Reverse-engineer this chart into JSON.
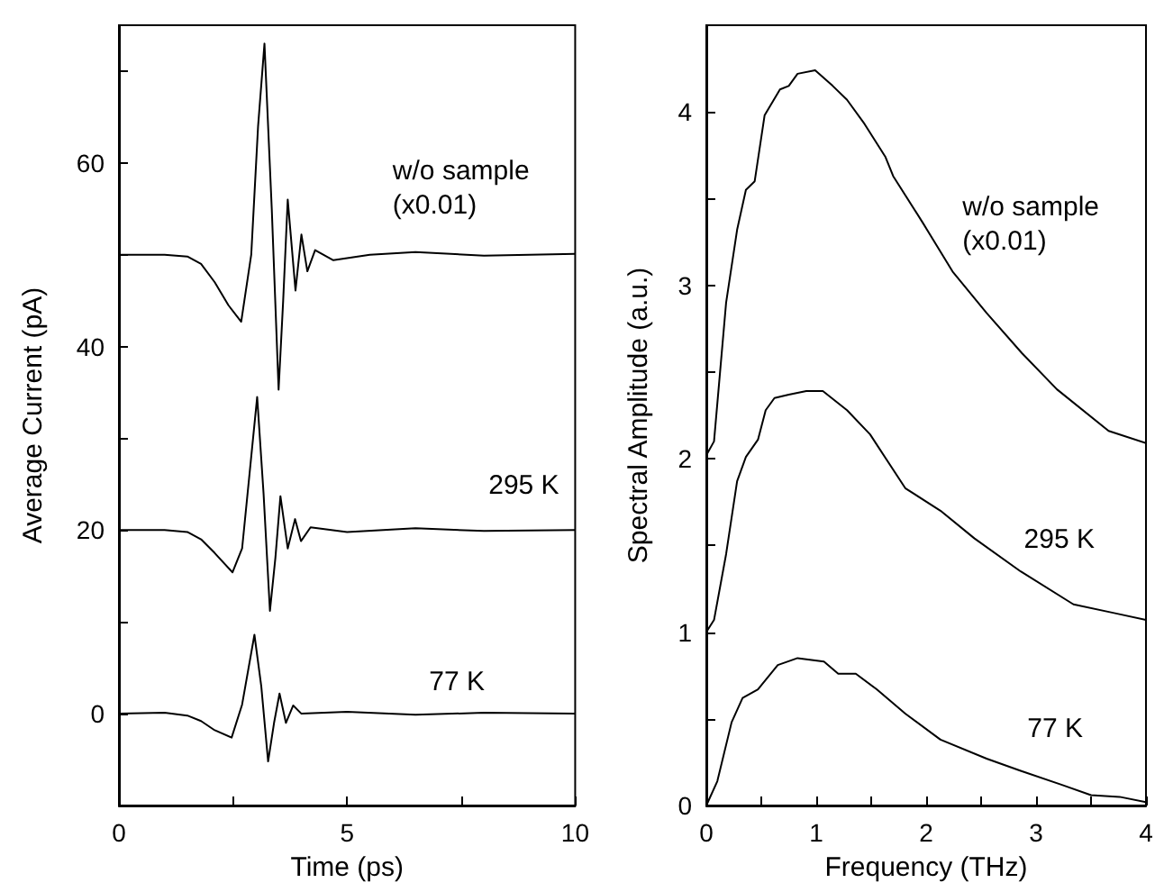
{
  "chart_data": [
    {
      "type": "line",
      "xlabel": "Time (ps)",
      "ylabel": "Average Current (pA)",
      "xlim": [
        0,
        10
      ],
      "ylim": [
        -10,
        75
      ],
      "xticks": [
        0,
        {
          "value": 2.5,
          "label": null
        },
        5,
        {
          "value": 7.5,
          "label": null
        },
        10
      ],
      "yticks": [
        {
          "value": -10,
          "label": null
        },
        0,
        {
          "value": 10,
          "label": null
        },
        20,
        {
          "value": 30,
          "label": null
        },
        40,
        {
          "value": 50,
          "label": null
        },
        60,
        {
          "value": 70,
          "label": null
        }
      ],
      "grid": false,
      "marker": "none",
      "line_style": "solid",
      "series": [
        {
          "color": "#000000",
          "x": [
            0,
            1,
            1.5,
            1.8,
            2.1,
            2.4,
            2.68,
            2.9,
            3.05,
            3.19,
            3.35,
            3.5,
            3.6,
            3.7,
            3.87,
            4.0,
            4.13,
            4.3,
            4.7,
            5.5,
            6.5,
            8,
            10
          ],
          "values": [
            50,
            50,
            49.8,
            49,
            47,
            44.5,
            42.7,
            50,
            64,
            73,
            55,
            35.3,
            45,
            56,
            46.1,
            52.2,
            48.2,
            50.5,
            49.4,
            50,
            50.3,
            49.9,
            50.1
          ]
        },
        {
          "color": "#000000",
          "x": [
            0,
            1,
            1.5,
            1.8,
            2.1,
            2.49,
            2.7,
            2.9,
            3.03,
            3.17,
            3.31,
            3.43,
            3.54,
            3.7,
            3.86,
            3.99,
            4.2,
            5,
            6.5,
            8,
            10
          ],
          "values": [
            20,
            20,
            19.8,
            19,
            17.5,
            15.4,
            18,
            28,
            34.5,
            24,
            11.2,
            17,
            23.7,
            18,
            21.2,
            18.8,
            20.3,
            19.8,
            20.2,
            19.9,
            20
          ]
        },
        {
          "color": "#000000",
          "x": [
            0,
            1,
            1.5,
            1.8,
            2.1,
            2.47,
            2.7,
            2.97,
            3.12,
            3.27,
            3.4,
            3.52,
            3.66,
            3.82,
            4.0,
            5,
            6.5,
            8,
            10
          ],
          "values": [
            0,
            0.1,
            -0.2,
            -0.8,
            -1.8,
            -2.6,
            1,
            8.6,
            3,
            -5.2,
            -1,
            2.2,
            -1,
            0.9,
            0,
            0.2,
            -0.1,
            0.1,
            0
          ]
        }
      ],
      "annotations": [
        "w/o sample (x0.01)",
        "295 K",
        "77 K"
      ]
    },
    {
      "type": "line",
      "xlabel": "Frequency (THz)",
      "ylabel": "Spectral Amplitude (a.u.)",
      "xlim": [
        0,
        4
      ],
      "ylim": [
        0,
        4.5
      ],
      "xticks": [
        0,
        {
          "value": 0.5,
          "label": null
        },
        1,
        {
          "value": 1.5,
          "label": null
        },
        2,
        {
          "value": 2.5,
          "label": null
        },
        3,
        {
          "value": 3.5,
          "label": null
        },
        4
      ],
      "yticks": [
        0,
        {
          "value": 0.5,
          "label": null
        },
        1,
        {
          "value": 1.5,
          "label": null
        },
        2,
        {
          "value": 2.5,
          "label": null
        },
        3,
        {
          "value": 3.5,
          "label": null
        },
        4
      ],
      "grid": false,
      "marker": "none",
      "line_style": "solid",
      "series": [
        {
          "color": "#000000",
          "x": [
            0,
            0.07,
            0.18,
            0.28,
            0.36,
            0.44,
            0.53,
            0.67,
            0.75,
            0.83,
            0.99,
            1.15,
            1.28,
            1.44,
            1.63,
            1.7,
            1.97,
            2.24,
            2.55,
            2.87,
            3.19,
            3.66,
            4.0
          ],
          "values": [
            2.02,
            2.1,
            2.9,
            3.32,
            3.55,
            3.6,
            3.98,
            4.13,
            4.15,
            4.22,
            4.24,
            4.15,
            4.07,
            3.93,
            3.74,
            3.63,
            3.36,
            3.08,
            2.84,
            2.61,
            2.4,
            2.16,
            2.09
          ]
        },
        {
          "color": "#000000",
          "x": [
            0,
            0.07,
            0.18,
            0.28,
            0.36,
            0.47,
            0.54,
            0.62,
            0.75,
            0.91,
            1.06,
            1.28,
            1.49,
            1.81,
            2.13,
            2.44,
            2.86,
            3.34,
            3.71,
            4.0
          ],
          "values": [
            1.0,
            1.07,
            1.45,
            1.87,
            2.01,
            2.11,
            2.28,
            2.35,
            2.37,
            2.39,
            2.39,
            2.28,
            2.14,
            1.83,
            1.7,
            1.54,
            1.35,
            1.16,
            1.11,
            1.07
          ]
        },
        {
          "color": "#000000",
          "x": [
            0,
            0.1,
            0.23,
            0.33,
            0.47,
            0.65,
            0.83,
            1.07,
            1.2,
            1.36,
            1.55,
            1.81,
            2.13,
            2.55,
            2.86,
            3.23,
            3.5,
            3.76,
            4.0
          ],
          "values": [
            0,
            0.14,
            0.48,
            0.62,
            0.67,
            0.81,
            0.85,
            0.83,
            0.76,
            0.76,
            0.67,
            0.53,
            0.38,
            0.27,
            0.2,
            0.12,
            0.06,
            0.05,
            0.02
          ]
        }
      ],
      "annotations": [
        "w/o sample (x0.01)",
        "295 K",
        "77 K"
      ]
    }
  ]
}
